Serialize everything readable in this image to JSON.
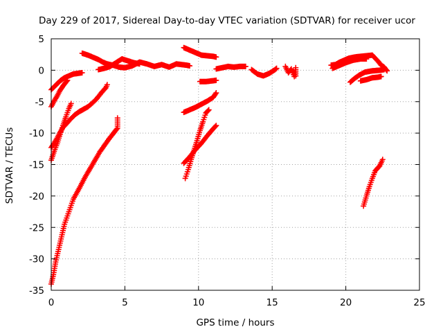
{
  "chart_data": {
    "type": "scatter",
    "title": "Day 229 of 2017, Sidereal Day-to-day VTEC variation (SDTVAR) for receiver ucor",
    "xlabel": "GPS time / hours",
    "ylabel": "SDTVAR / TECUs",
    "xlim": [
      0,
      25
    ],
    "ylim": [
      -35,
      5
    ],
    "xticks": [
      "0",
      "5",
      "10",
      "15",
      "20",
      "25"
    ],
    "yticks": [
      "5",
      "0",
      "-5",
      "-10",
      "-15",
      "-20",
      "-25",
      "-30",
      "-35"
    ],
    "grid": true,
    "legend": "none",
    "marker": "plus",
    "color": "#ff0000",
    "series": [
      {
        "points": [
          [
            0.0,
            -3.1
          ],
          [
            0.3,
            -2.4
          ],
          [
            0.6,
            -1.7
          ],
          [
            0.9,
            -1.2
          ],
          [
            1.2,
            -0.9
          ],
          [
            1.5,
            -0.6
          ],
          [
            1.8,
            -0.5
          ],
          [
            2.1,
            -0.4
          ]
        ]
      },
      {
        "points": [
          [
            0.0,
            -5.8
          ],
          [
            0.2,
            -4.9
          ],
          [
            0.4,
            -4.1
          ],
          [
            0.6,
            -3.2
          ],
          [
            0.8,
            -2.5
          ],
          [
            1.0,
            -1.9
          ],
          [
            1.1,
            -1.6
          ]
        ]
      },
      {
        "points": [
          [
            0.0,
            -12.3
          ],
          [
            0.2,
            -11.6
          ],
          [
            0.4,
            -10.8
          ],
          [
            0.6,
            -9.9
          ],
          [
            0.8,
            -9.1
          ],
          [
            1.0,
            -8.6
          ],
          [
            1.3,
            -7.8
          ],
          [
            1.6,
            -7.1
          ],
          [
            1.9,
            -6.6
          ],
          [
            2.2,
            -6.2
          ],
          [
            2.5,
            -5.8
          ],
          [
            2.8,
            -5.2
          ],
          [
            3.1,
            -4.5
          ],
          [
            3.4,
            -3.6
          ],
          [
            3.7,
            -2.8
          ],
          [
            3.8,
            -2.3
          ]
        ]
      },
      {
        "points": [
          [
            0.0,
            -14.3
          ],
          [
            0.2,
            -12.9
          ],
          [
            0.4,
            -11.7
          ],
          [
            0.6,
            -10.2
          ],
          [
            0.8,
            -8.8
          ],
          [
            1.0,
            -7.4
          ],
          [
            1.2,
            -6.1
          ],
          [
            1.35,
            -5.3
          ]
        ]
      },
      {
        "points": [
          [
            0.0,
            -34.0
          ],
          [
            0.15,
            -32.5
          ],
          [
            0.3,
            -30.5
          ],
          [
            0.5,
            -28.5
          ],
          [
            0.7,
            -26.5
          ],
          [
            0.9,
            -24.5
          ],
          [
            1.2,
            -22.5
          ],
          [
            1.5,
            -20.5
          ],
          [
            1.9,
            -18.8
          ],
          [
            2.3,
            -17.0
          ],
          [
            2.8,
            -15.0
          ],
          [
            3.3,
            -13.0
          ],
          [
            3.9,
            -11.0
          ],
          [
            4.5,
            -9.2
          ],
          [
            4.5,
            -7.6
          ]
        ]
      },
      {
        "points": [
          [
            2.1,
            2.7
          ],
          [
            2.5,
            2.4
          ],
          [
            2.9,
            2.0
          ],
          [
            3.2,
            1.7
          ],
          [
            3.5,
            1.3
          ],
          [
            3.8,
            1.0
          ],
          [
            4.2,
            0.8
          ],
          [
            4.6,
            0.5
          ],
          [
            5.0,
            0.4
          ],
          [
            5.5,
            0.7
          ],
          [
            6.0,
            1.3
          ],
          [
            6.5,
            1.0
          ],
          [
            7.0,
            0.6
          ],
          [
            7.5,
            0.9
          ],
          [
            8.0,
            0.5
          ],
          [
            8.5,
            1.0
          ],
          [
            9.2,
            0.8
          ],
          [
            9.4,
            0.7
          ]
        ]
      },
      {
        "points": [
          [
            3.2,
            0.1
          ],
          [
            3.6,
            0.3
          ],
          [
            4.0,
            0.6
          ],
          [
            4.4,
            1.2
          ],
          [
            4.8,
            1.8
          ],
          [
            5.2,
            1.5
          ],
          [
            5.6,
            1.2
          ],
          [
            6.0,
            1.0
          ]
        ]
      },
      {
        "points": [
          [
            9.0,
            3.6
          ],
          [
            9.4,
            3.2
          ],
          [
            9.8,
            2.8
          ],
          [
            10.2,
            2.4
          ],
          [
            10.6,
            2.3
          ],
          [
            11.0,
            2.2
          ],
          [
            11.2,
            2.1
          ]
        ]
      },
      {
        "points": [
          [
            10.1,
            -1.8
          ],
          [
            10.5,
            -1.8
          ],
          [
            10.9,
            -1.7
          ],
          [
            11.2,
            -1.6
          ]
        ]
      },
      {
        "points": [
          [
            11.2,
            0.2
          ],
          [
            11.6,
            0.4
          ],
          [
            12.0,
            0.6
          ],
          [
            12.4,
            0.5
          ],
          [
            12.8,
            0.6
          ],
          [
            13.2,
            0.6
          ]
        ]
      },
      {
        "points": [
          [
            13.6,
            0.1
          ],
          [
            14.0,
            -0.6
          ],
          [
            14.4,
            -0.9
          ],
          [
            14.8,
            -0.5
          ],
          [
            15.2,
            0.1
          ],
          [
            15.3,
            0.3
          ]
        ]
      },
      {
        "points": [
          [
            15.9,
            0.6
          ],
          [
            16.1,
            -0.4
          ],
          [
            16.3,
            0.2
          ],
          [
            16.5,
            -1.0
          ],
          [
            16.6,
            0.4
          ],
          [
            16.6,
            -0.9
          ]
        ]
      },
      {
        "points": [
          [
            9.0,
            -6.7
          ],
          [
            9.4,
            -6.3
          ],
          [
            9.8,
            -5.9
          ],
          [
            10.2,
            -5.4
          ],
          [
            10.6,
            -4.9
          ],
          [
            11.0,
            -4.3
          ],
          [
            11.2,
            -3.6
          ]
        ]
      },
      {
        "points": [
          [
            9.0,
            -14.8
          ],
          [
            9.4,
            -13.8
          ],
          [
            9.8,
            -12.6
          ],
          [
            10.2,
            -11.6
          ],
          [
            10.6,
            -10.4
          ],
          [
            11.0,
            -9.3
          ],
          [
            11.2,
            -8.8
          ]
        ]
      },
      {
        "points": [
          [
            9.1,
            -17.2
          ],
          [
            9.3,
            -15.8
          ],
          [
            9.5,
            -14.2
          ],
          [
            9.7,
            -12.7
          ],
          [
            9.9,
            -11.2
          ],
          [
            10.1,
            -9.6
          ],
          [
            10.3,
            -8.2
          ],
          [
            10.5,
            -6.8
          ],
          [
            10.7,
            -6.3
          ]
        ]
      },
      {
        "points": [
          [
            19.0,
            0.8
          ],
          [
            19.3,
            0.9
          ],
          [
            19.6,
            1.3
          ],
          [
            19.9,
            1.6
          ],
          [
            20.2,
            1.9
          ],
          [
            20.6,
            2.1
          ],
          [
            21.0,
            2.2
          ],
          [
            21.4,
            2.3
          ],
          [
            21.8,
            2.4
          ],
          [
            22.0,
            1.9
          ],
          [
            22.2,
            1.4
          ],
          [
            22.4,
            0.8
          ],
          [
            22.6,
            0.5
          ],
          [
            22.8,
            -0.1
          ]
        ]
      },
      {
        "points": [
          [
            19.1,
            0.3
          ],
          [
            19.5,
            0.7
          ],
          [
            20.0,
            1.2
          ],
          [
            20.5,
            1.6
          ],
          [
            21.0,
            1.8
          ],
          [
            21.4,
            1.8
          ]
        ]
      },
      {
        "points": [
          [
            20.3,
            -1.9
          ],
          [
            20.6,
            -1.3
          ],
          [
            20.9,
            -0.8
          ],
          [
            21.3,
            -0.3
          ],
          [
            21.8,
            -0.1
          ],
          [
            22.3,
            0.0
          ],
          [
            22.6,
            0.1
          ]
        ]
      },
      {
        "points": [
          [
            21.0,
            -1.7
          ],
          [
            21.4,
            -1.5
          ],
          [
            21.8,
            -1.2
          ],
          [
            22.2,
            -1.1
          ],
          [
            22.4,
            -1.0
          ]
        ]
      },
      {
        "points": [
          [
            21.2,
            -21.6
          ],
          [
            21.4,
            -20.0
          ],
          [
            21.6,
            -18.5
          ],
          [
            21.8,
            -17.2
          ],
          [
            22.0,
            -16.0
          ],
          [
            22.3,
            -15.2
          ],
          [
            22.5,
            -14.2
          ]
        ]
      }
    ]
  }
}
